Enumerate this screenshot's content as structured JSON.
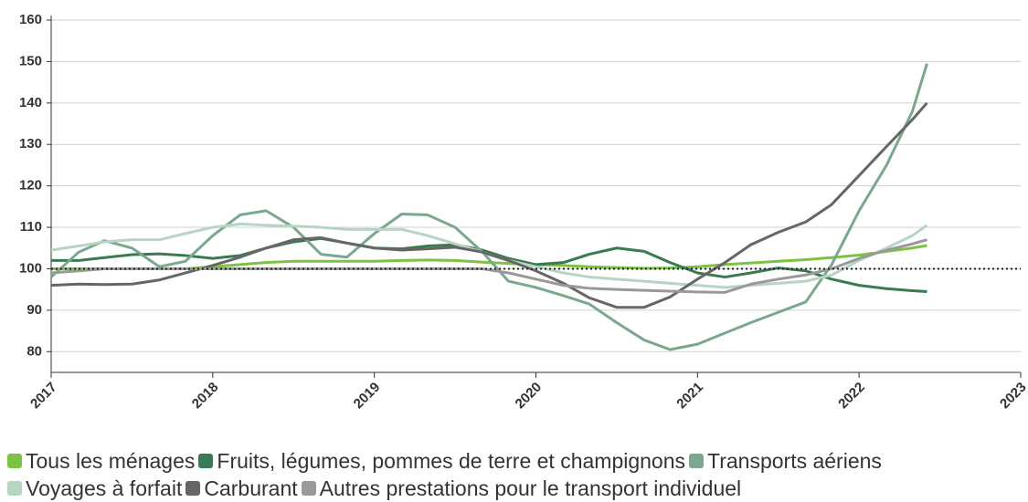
{
  "chart_data": {
    "type": "line",
    "x": [
      2017,
      2017.17,
      2017.33,
      2017.5,
      2017.67,
      2017.83,
      2018,
      2018.17,
      2018.33,
      2018.5,
      2018.67,
      2018.83,
      2019,
      2019.17,
      2019.33,
      2019.5,
      2019.67,
      2019.83,
      2020,
      2020.17,
      2020.33,
      2020.5,
      2020.67,
      2020.83,
      2021,
      2021.17,
      2021.33,
      2021.5,
      2021.67,
      2021.83,
      2022,
      2022.17,
      2022.33,
      2022.42
    ],
    "series": [
      {
        "name": "Tous les ménages",
        "color": "#7dc242",
        "values": [
          100,
          100,
          100,
          100,
          100,
          100,
          100.5,
          101,
          101.5,
          101.8,
          101.8,
          101.8,
          101.8,
          102,
          102.1,
          102,
          101.6,
          101.3,
          101,
          100.8,
          100.5,
          100.3,
          100.1,
          100.2,
          100.5,
          101,
          101.4,
          101.8,
          102.2,
          102.7,
          103.3,
          104.2,
          105,
          105.6
        ]
      },
      {
        "name": "Fruits, légumes, pommes de terre et champignons",
        "color": "#3a7a52",
        "values": [
          102,
          102,
          102.7,
          103.4,
          103.6,
          103.2,
          102.5,
          103.2,
          105,
          106.5,
          107.3,
          106.2,
          105,
          104.8,
          105.5,
          105.8,
          104.5,
          102.5,
          101,
          101.5,
          103.5,
          105,
          104.2,
          101.5,
          99,
          98,
          99,
          100.2,
          99.5,
          97.5,
          96,
          95.2,
          94.7,
          94.5
        ]
      },
      {
        "name": "Transports aériens",
        "color": "#7aa88c",
        "values": [
          98,
          104,
          106.8,
          105,
          100.5,
          101.8,
          108,
          113,
          114,
          110,
          103.5,
          102.8,
          108.5,
          113.2,
          113,
          110,
          104,
          97,
          95.5,
          93.5,
          91.5,
          87,
          82.8,
          80.5,
          81.8,
          84.5,
          87,
          89.5,
          92,
          101,
          114,
          125,
          138,
          149.5
        ]
      },
      {
        "name": "Voyages à forfait",
        "color": "#b8d4c5",
        "values": [
          104.5,
          105.5,
          106.5,
          107,
          107,
          108.5,
          110,
          110.8,
          110.5,
          110.3,
          110,
          109.5,
          109.5,
          109.5,
          108,
          106,
          104,
          102,
          100.5,
          99,
          98,
          97.5,
          97,
          96.5,
          96,
          95.5,
          96,
          96.5,
          97,
          98.5,
          102,
          105,
          108,
          110.5
        ]
      },
      {
        "name": "Carburant",
        "color": "#666666",
        "values": [
          96,
          96.3,
          96.2,
          96.3,
          97.3,
          99,
          100.8,
          102.8,
          105,
          107,
          107.5,
          106.2,
          105,
          104.5,
          104.8,
          105.2,
          104,
          102,
          99.5,
          96.5,
          93,
          90.7,
          90.7,
          93.2,
          97.5,
          101.5,
          105.8,
          108.8,
          111.3,
          115.5,
          122.5,
          129.5,
          136,
          140
        ]
      },
      {
        "name": "Autres prestations pour le transport individuel",
        "color": "#999999",
        "values": [
          99,
          99.5,
          100,
          100,
          100,
          100,
          100,
          100,
          100,
          100,
          100,
          100,
          100,
          100,
          100,
          100,
          100,
          99,
          97.5,
          96,
          95.3,
          95,
          94.8,
          94.6,
          94.4,
          94.3,
          96.3,
          97.5,
          98.5,
          100,
          102.5,
          104.5,
          106,
          107
        ]
      }
    ],
    "xlim": [
      2017,
      2023
    ],
    "xticks": [
      2017,
      2018,
      2019,
      2020,
      2021,
      2022,
      2023
    ],
    "ylim": [
      75,
      160
    ],
    "yticks": [
      80,
      90,
      100,
      110,
      120,
      130,
      140,
      150,
      160
    ],
    "reference_line": 100,
    "grid": true,
    "legend": "bottom"
  }
}
